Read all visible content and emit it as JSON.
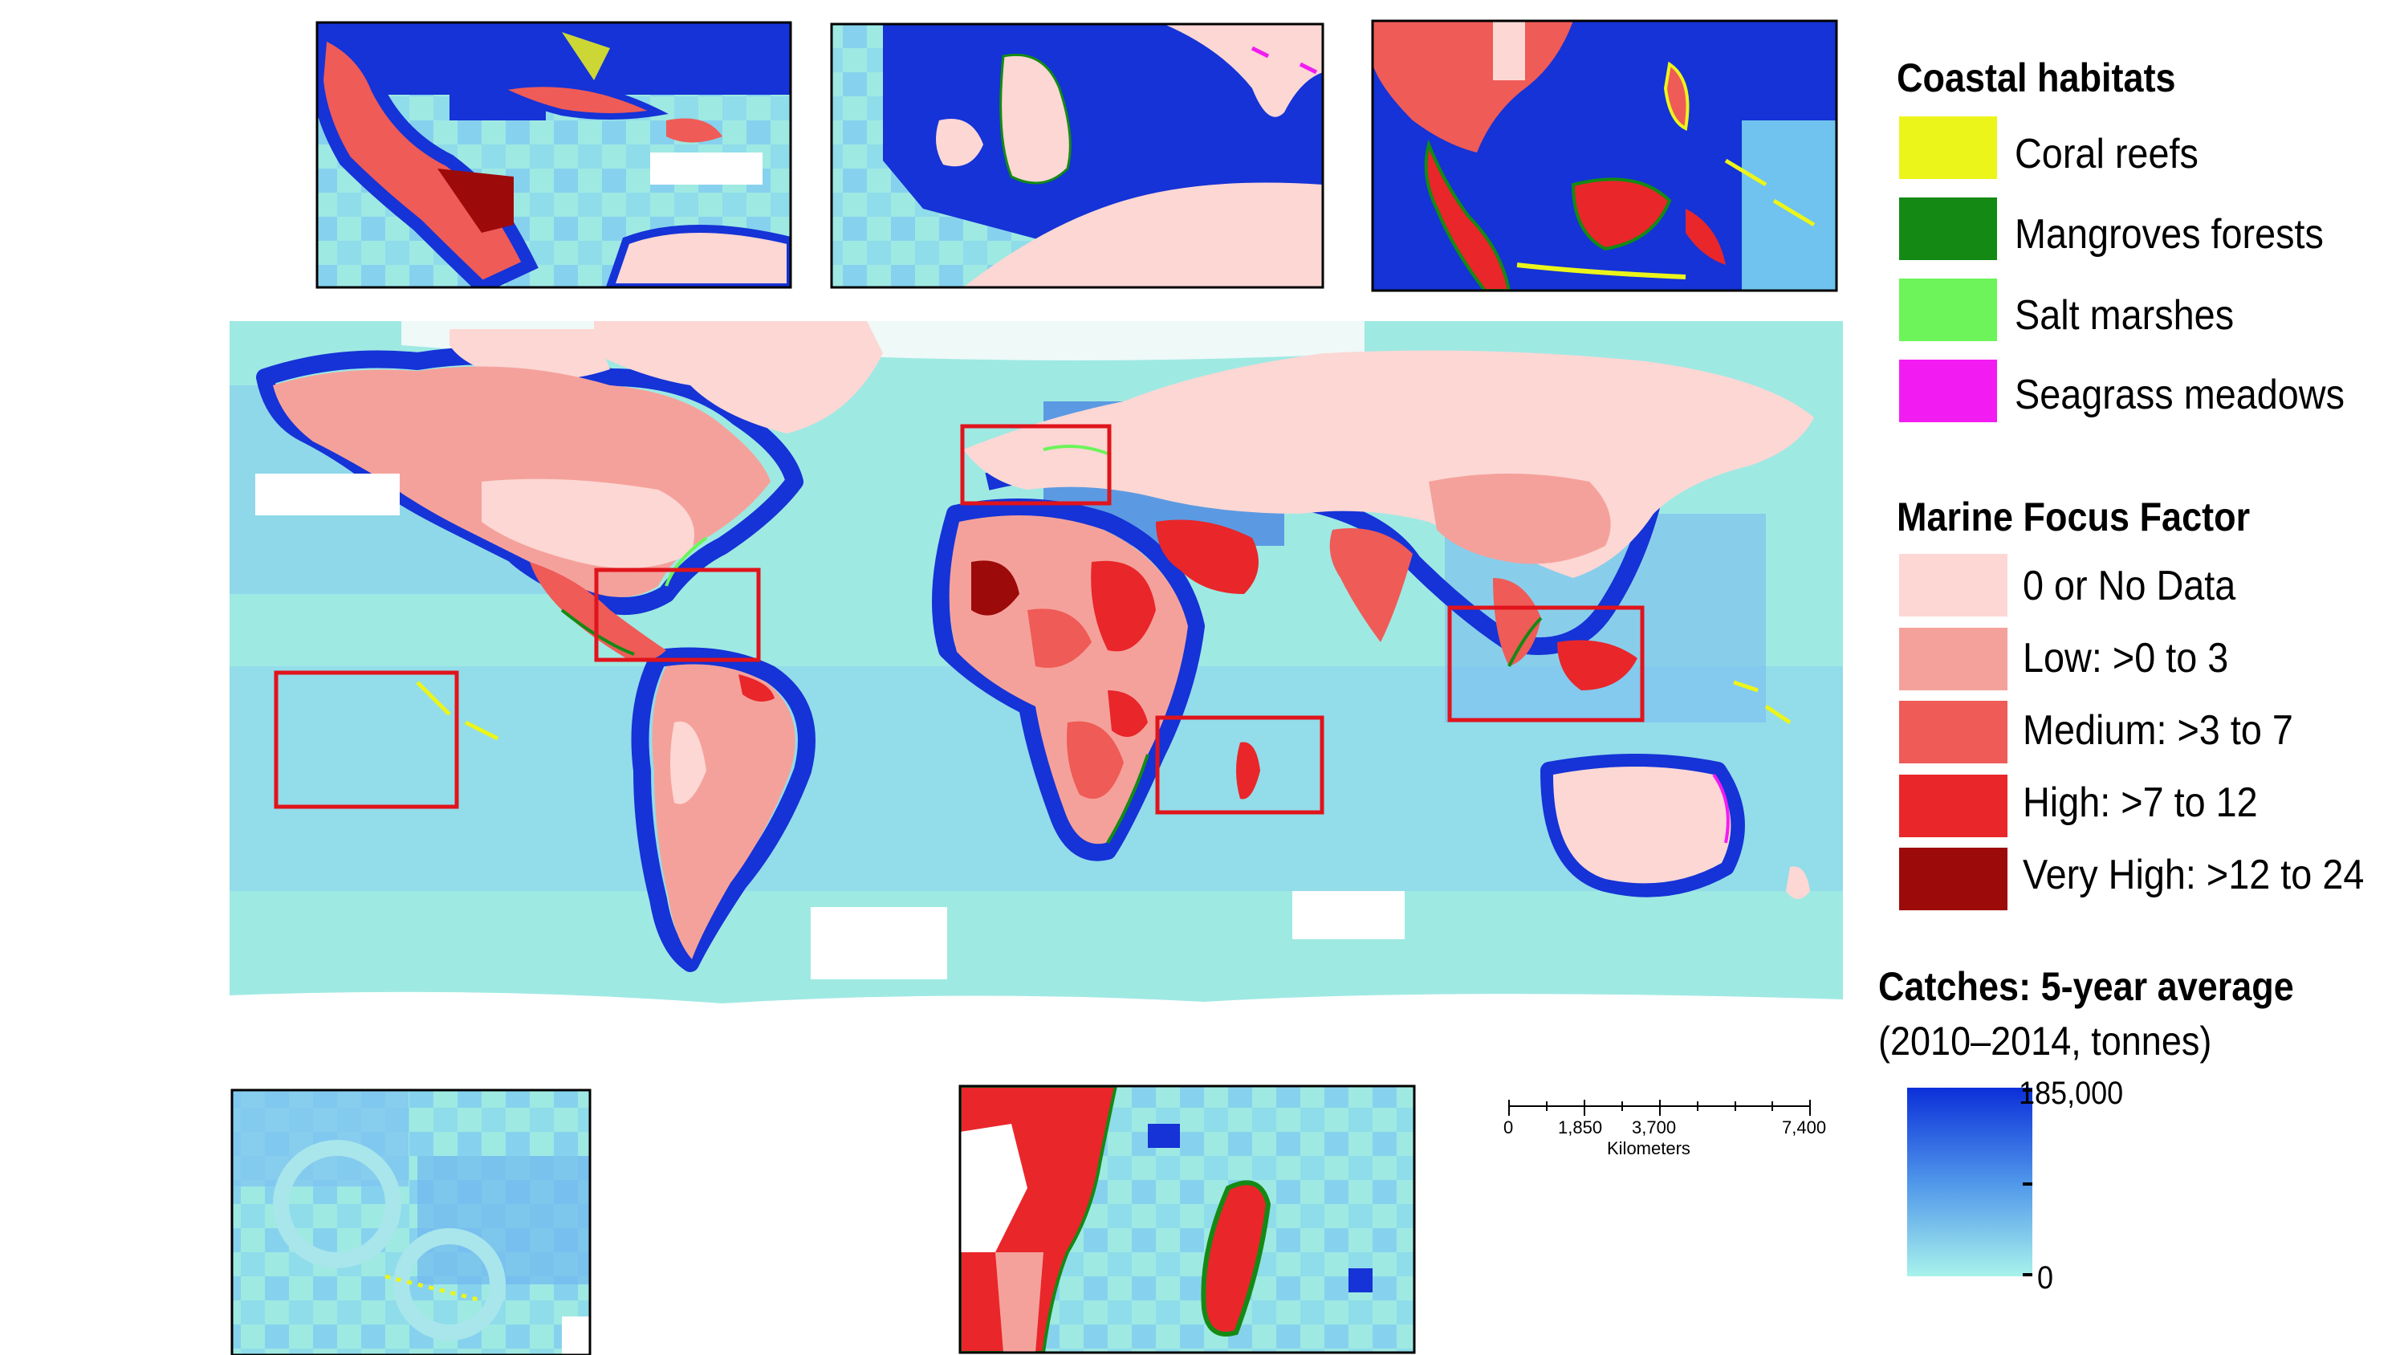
{
  "legend": {
    "coastal_habitats": {
      "title": "Coastal habitats",
      "items": [
        {
          "label": "Coral reefs",
          "color": "#ecf51a"
        },
        {
          "label": "Mangroves forests",
          "color": "#148a14"
        },
        {
          "label": "Salt marshes",
          "color": "#6cf45a"
        },
        {
          "label": "Seagrass meadows",
          "color": "#f21cf2"
        }
      ]
    },
    "marine_focus_factor": {
      "title": "Marine Focus Factor",
      "items": [
        {
          "label": "0 or No Data",
          "color": "#fcd7d4"
        },
        {
          "label": "Low: >0 to 3",
          "color": "#f5a19b"
        },
        {
          "label": "Medium: >3 to 7",
          "color": "#ef5b57"
        },
        {
          "label": "High: >7 to 12",
          "color": "#e9262a"
        },
        {
          "label": "Very High: >12 to 24",
          "color": "#9d0a0a"
        }
      ]
    },
    "catches": {
      "title": "Catches: 5-year average",
      "subtitle": "(2010–2014, tonnes)",
      "max_label": "185,000",
      "min_label": "0",
      "color_max": "#0b2fd9",
      "color_min": "#a8f2ec"
    }
  },
  "scale_bar": {
    "ticks": [
      "0",
      "1,850",
      "3,700",
      "7,400"
    ],
    "unit": "Kilometers"
  },
  "colors": {
    "ocean": "#9fe9e3",
    "ocean_mid": "#6fc3ee",
    "shelf": "#1533d6",
    "ice": "#ffffff",
    "inset_border": "#000000",
    "highlight_box": "#e0141c"
  },
  "insets": [
    {
      "name": "caribbean-inset"
    },
    {
      "name": "british-isles-inset"
    },
    {
      "name": "southeast-asia-inset"
    },
    {
      "name": "pacific-islands-inset"
    },
    {
      "name": "mozambique-madagascar-inset"
    }
  ]
}
